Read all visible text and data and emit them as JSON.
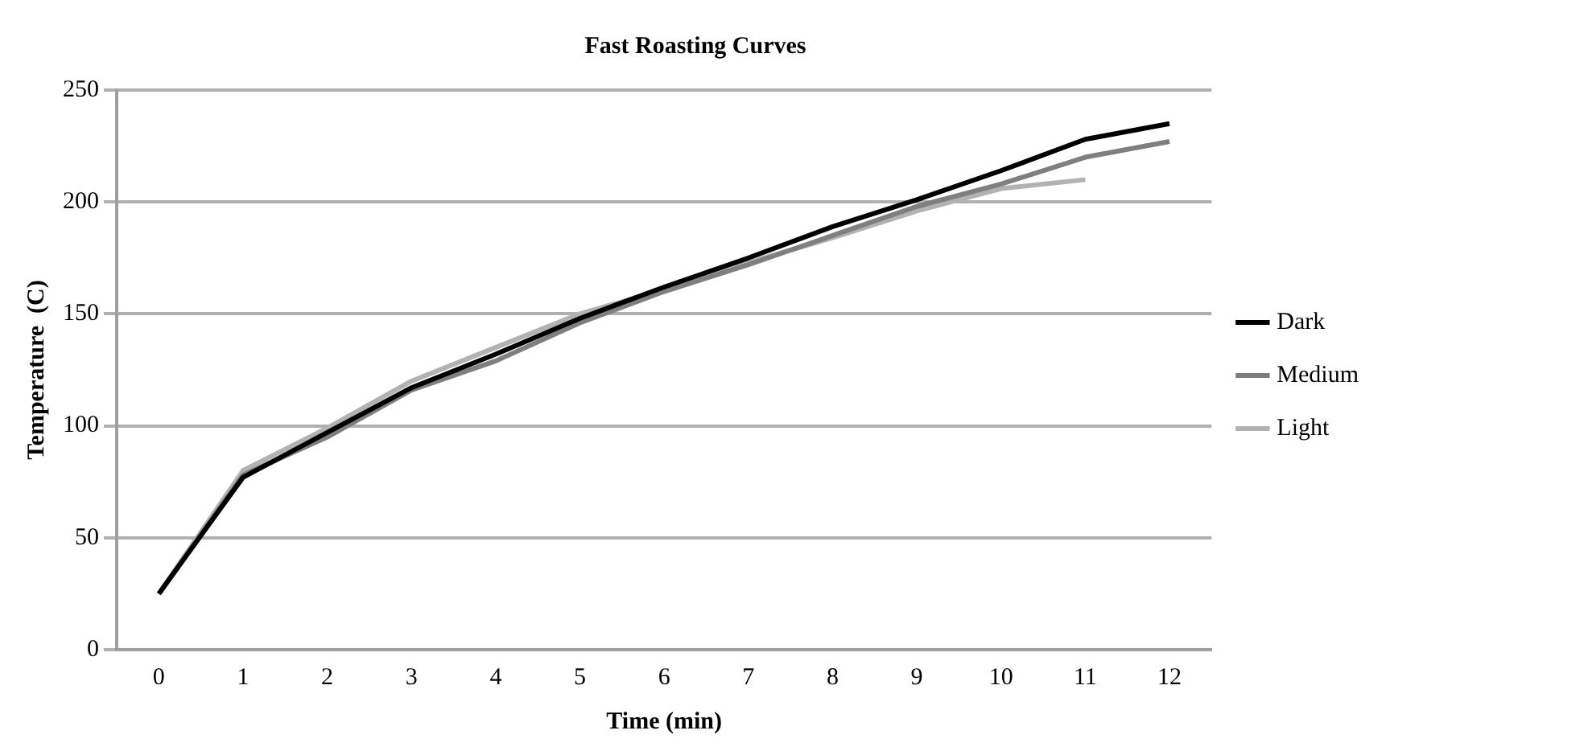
{
  "chart_data": {
    "type": "line",
    "title": "Fast Roasting Curves",
    "xlabel": "Time (min)",
    "ylabel": "Temperature  (C)",
    "categories": [
      "0",
      "1",
      "2",
      "3",
      "4",
      "5",
      "6",
      "7",
      "8",
      "9",
      "10",
      "11",
      "12"
    ],
    "series": [
      {
        "name": "Dark",
        "color": "#000000",
        "values": [
          25,
          77,
          97,
          117,
          132,
          148,
          162,
          175,
          189,
          201,
          214,
          228,
          235
        ]
      },
      {
        "name": "Medium",
        "color": "#7f7f7f",
        "values": [
          25,
          78,
          95,
          116,
          129,
          146,
          160,
          172,
          185,
          198,
          208,
          220,
          227
        ]
      },
      {
        "name": "Light",
        "color": "#b2b2b2",
        "values": [
          25,
          80,
          99,
          120,
          135,
          150,
          161,
          173,
          184,
          196,
          206,
          210,
          null
        ]
      }
    ],
    "ylim": [
      0,
      250
    ],
    "yticks": [
      0,
      50,
      100,
      150,
      200,
      250
    ],
    "grid": "y",
    "legend": "right",
    "marker": "none",
    "line_style": "solid"
  }
}
